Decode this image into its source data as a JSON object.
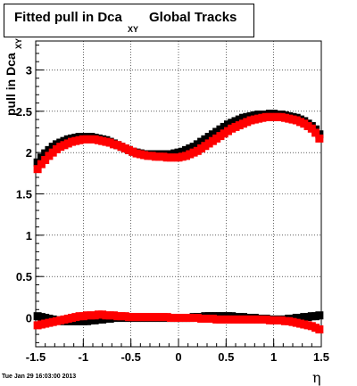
{
  "title": {
    "main": "Fitted pull in Dca",
    "subscript": "XY",
    "rest": "Global Tracks"
  },
  "ylabel": {
    "main": "pull in Dca",
    "subscript": "XY"
  },
  "xlabel": "η",
  "timestamp": "Tue Jan 29 16:03:00 2013",
  "colors": {
    "series_black": "#000000",
    "series_red": "#ff0000",
    "grid": "#000000"
  },
  "chart_data": {
    "type": "scatter",
    "title": "Fitted pull in Dca XY Global Tracks",
    "xlabel": "η",
    "ylabel": "pull in Dca XY",
    "xlim": [
      -1.5,
      1.5
    ],
    "ylim": [
      -0.35,
      3.35
    ],
    "grid": true,
    "x_ticks": [
      "-1.5",
      "-1",
      "-0.5",
      "0",
      "0.5",
      "1",
      "1.5"
    ],
    "y_ticks": [
      "0",
      "0.5",
      "1",
      "1.5",
      "2",
      "2.5",
      "3"
    ],
    "x_tick_values": [
      -1.5,
      -1,
      -0.5,
      0,
      0.5,
      1,
      1.5
    ],
    "y_tick_values": [
      0,
      0.5,
      1,
      1.5,
      2,
      2.5,
      3
    ],
    "series": [
      {
        "color": "#000000",
        "x": [
          -1.48,
          -1.44,
          -1.4,
          -1.36,
          -1.32,
          -1.28,
          -1.24,
          -1.2,
          -1.16,
          -1.12,
          -1.08,
          -1.04,
          -1.0,
          -0.96,
          -0.92,
          -0.88,
          -0.84,
          -0.8,
          -0.76,
          -0.72,
          -0.68,
          -0.64,
          -0.6,
          -0.56,
          -0.52,
          -0.48,
          -0.44,
          -0.4,
          -0.36,
          -0.32,
          -0.28,
          -0.24,
          -0.2,
          -0.16,
          -0.12,
          -0.08,
          -0.04,
          0.0,
          0.04,
          0.08,
          0.12,
          0.16,
          0.2,
          0.24,
          0.28,
          0.32,
          0.36,
          0.4,
          0.44,
          0.48,
          0.52,
          0.56,
          0.6,
          0.64,
          0.68,
          0.72,
          0.76,
          0.8,
          0.84,
          0.88,
          0.92,
          0.96,
          1.0,
          1.04,
          1.08,
          1.12,
          1.16,
          1.2,
          1.24,
          1.28,
          1.32,
          1.36,
          1.4,
          1.44,
          1.48
        ],
        "y": [
          1.88,
          1.94,
          1.99,
          2.03,
          2.07,
          2.1,
          2.12,
          2.14,
          2.16,
          2.17,
          2.18,
          2.19,
          2.19,
          2.19,
          2.19,
          2.18,
          2.17,
          2.16,
          2.15,
          2.13,
          2.11,
          2.09,
          2.07,
          2.05,
          2.03,
          2.01,
          2.0,
          1.99,
          1.98,
          1.98,
          1.98,
          1.98,
          1.98,
          1.98,
          1.98,
          1.98,
          1.99,
          2.0,
          2.01,
          2.03,
          2.05,
          2.07,
          2.1,
          2.13,
          2.16,
          2.19,
          2.22,
          2.25,
          2.28,
          2.31,
          2.34,
          2.36,
          2.38,
          2.4,
          2.42,
          2.43,
          2.44,
          2.45,
          2.46,
          2.46,
          2.46,
          2.47,
          2.47,
          2.46,
          2.46,
          2.45,
          2.44,
          2.43,
          2.42,
          2.4,
          2.38,
          2.35,
          2.32,
          2.28,
          2.22
        ]
      },
      {
        "color": "#ff0000",
        "x": [
          -1.48,
          -1.44,
          -1.4,
          -1.36,
          -1.32,
          -1.28,
          -1.24,
          -1.2,
          -1.16,
          -1.12,
          -1.08,
          -1.04,
          -1.0,
          -0.96,
          -0.92,
          -0.88,
          -0.84,
          -0.8,
          -0.76,
          -0.72,
          -0.68,
          -0.64,
          -0.6,
          -0.56,
          -0.52,
          -0.48,
          -0.44,
          -0.4,
          -0.36,
          -0.32,
          -0.28,
          -0.24,
          -0.2,
          -0.16,
          -0.12,
          -0.08,
          -0.04,
          0.0,
          0.04,
          0.08,
          0.12,
          0.16,
          0.2,
          0.24,
          0.28,
          0.32,
          0.36,
          0.4,
          0.44,
          0.48,
          0.52,
          0.56,
          0.6,
          0.64,
          0.68,
          0.72,
          0.76,
          0.8,
          0.84,
          0.88,
          0.92,
          0.96,
          1.0,
          1.04,
          1.08,
          1.12,
          1.16,
          1.2,
          1.24,
          1.28,
          1.32,
          1.36,
          1.4,
          1.44,
          1.48
        ],
        "y": [
          1.8,
          1.86,
          1.91,
          1.96,
          2.0,
          2.04,
          2.07,
          2.09,
          2.11,
          2.13,
          2.14,
          2.15,
          2.16,
          2.16,
          2.16,
          2.16,
          2.15,
          2.14,
          2.13,
          2.12,
          2.1,
          2.09,
          2.07,
          2.05,
          2.03,
          2.01,
          1.99,
          1.98,
          1.97,
          1.96,
          1.96,
          1.95,
          1.95,
          1.95,
          1.94,
          1.94,
          1.94,
          1.94,
          1.95,
          1.96,
          1.98,
          2.0,
          2.02,
          2.05,
          2.08,
          2.11,
          2.14,
          2.17,
          2.2,
          2.23,
          2.26,
          2.29,
          2.31,
          2.33,
          2.35,
          2.37,
          2.39,
          2.4,
          2.41,
          2.42,
          2.43,
          2.43,
          2.43,
          2.43,
          2.43,
          2.42,
          2.41,
          2.4,
          2.39,
          2.37,
          2.35,
          2.32,
          2.29,
          2.24,
          2.17
        ]
      },
      {
        "color": "#000000",
        "x": [
          -1.48,
          -1.44,
          -1.4,
          -1.36,
          -1.32,
          -1.28,
          -1.24,
          -1.2,
          -1.16,
          -1.12,
          -1.08,
          -1.04,
          -1.0,
          -0.96,
          -0.92,
          -0.88,
          -0.84,
          -0.8,
          -0.76,
          -0.72,
          -0.68,
          -0.64,
          -0.6,
          -0.56,
          -0.52,
          -0.48,
          -0.44,
          -0.4,
          -0.36,
          -0.32,
          -0.28,
          -0.24,
          -0.2,
          -0.16,
          -0.12,
          -0.08,
          -0.04,
          0.0,
          0.04,
          0.08,
          0.12,
          0.16,
          0.2,
          0.24,
          0.28,
          0.32,
          0.36,
          0.4,
          0.44,
          0.48,
          0.52,
          0.56,
          0.6,
          0.64,
          0.68,
          0.72,
          0.76,
          0.8,
          0.84,
          0.88,
          0.92,
          0.96,
          1.0,
          1.04,
          1.08,
          1.12,
          1.16,
          1.2,
          1.24,
          1.28,
          1.32,
          1.36,
          1.4,
          1.44,
          1.48
        ],
        "y": [
          0.02,
          0.01,
          0.0,
          -0.01,
          -0.02,
          -0.03,
          -0.03,
          -0.04,
          -0.04,
          -0.04,
          -0.04,
          -0.04,
          -0.04,
          -0.04,
          -0.03,
          -0.03,
          -0.02,
          -0.02,
          -0.01,
          -0.01,
          0.0,
          0.0,
          0.0,
          0.0,
          0.0,
          0.0,
          0.0,
          0.0,
          0.0,
          0.0,
          0.0,
          0.0,
          0.0,
          0.0,
          0.0,
          0.0,
          0.0,
          0.0,
          0.0,
          0.0,
          0.0,
          0.01,
          0.01,
          0.01,
          0.02,
          0.02,
          0.02,
          0.02,
          0.02,
          0.02,
          0.02,
          0.02,
          0.01,
          0.01,
          0.01,
          0.0,
          0.0,
          0.0,
          -0.01,
          -0.01,
          -0.01,
          -0.02,
          -0.02,
          -0.02,
          -0.02,
          -0.02,
          -0.01,
          -0.01,
          0.0,
          0.0,
          0.01,
          0.01,
          0.02,
          0.02,
          0.03
        ]
      },
      {
        "color": "#ff0000",
        "x": [
          -1.48,
          -1.44,
          -1.4,
          -1.36,
          -1.32,
          -1.28,
          -1.24,
          -1.2,
          -1.16,
          -1.12,
          -1.08,
          -1.04,
          -1.0,
          -0.96,
          -0.92,
          -0.88,
          -0.84,
          -0.8,
          -0.76,
          -0.72,
          -0.68,
          -0.64,
          -0.6,
          -0.56,
          -0.52,
          -0.48,
          -0.44,
          -0.4,
          -0.36,
          -0.32,
          -0.28,
          -0.24,
          -0.2,
          -0.16,
          -0.12,
          -0.08,
          -0.04,
          0.0,
          0.04,
          0.08,
          0.12,
          0.16,
          0.2,
          0.24,
          0.28,
          0.32,
          0.36,
          0.4,
          0.44,
          0.48,
          0.52,
          0.56,
          0.6,
          0.64,
          0.68,
          0.72,
          0.76,
          0.8,
          0.84,
          0.88,
          0.92,
          0.96,
          1.0,
          1.04,
          1.08,
          1.12,
          1.16,
          1.2,
          1.24,
          1.28,
          1.32,
          1.36,
          1.4,
          1.44,
          1.48
        ],
        "y": [
          -0.09,
          -0.08,
          -0.07,
          -0.06,
          -0.05,
          -0.04,
          -0.03,
          -0.02,
          -0.01,
          0.0,
          0.01,
          0.02,
          0.02,
          0.03,
          0.03,
          0.03,
          0.04,
          0.04,
          0.03,
          0.03,
          0.03,
          0.02,
          0.02,
          0.02,
          0.01,
          0.01,
          0.01,
          0.01,
          0.01,
          0.01,
          0.01,
          0.01,
          0.01,
          0.01,
          0.01,
          0.0,
          0.0,
          0.0,
          0.0,
          0.0,
          0.0,
          0.0,
          0.0,
          -0.01,
          -0.01,
          -0.01,
          -0.01,
          -0.02,
          -0.02,
          -0.02,
          -0.02,
          -0.02,
          -0.02,
          -0.02,
          -0.02,
          -0.02,
          -0.02,
          -0.02,
          -0.02,
          -0.02,
          -0.02,
          -0.03,
          -0.03,
          -0.03,
          -0.03,
          -0.04,
          -0.04,
          -0.05,
          -0.06,
          -0.07,
          -0.08,
          -0.09,
          -0.1,
          -0.12,
          -0.14
        ]
      }
    ]
  }
}
